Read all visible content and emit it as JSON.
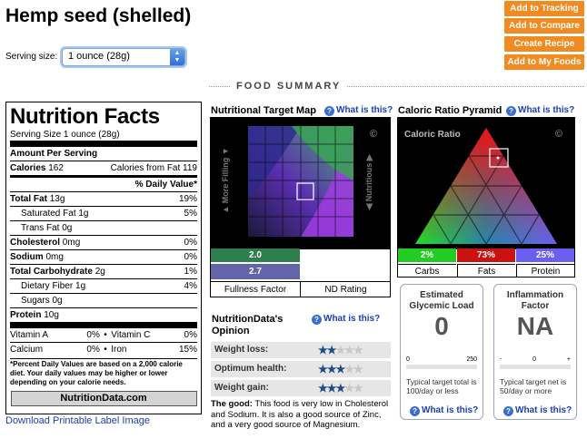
{
  "title": "Hemp seed (shelled)",
  "serving": {
    "label": "Serving size:",
    "value": "1 ounce (28g)"
  },
  "buttons": [
    "Add to Tracking",
    "Add to Compare",
    "Create Recipe",
    "Add to My Foods"
  ],
  "section_header": "FOOD SUMMARY",
  "nutrition_facts": {
    "title": "Nutrition Facts",
    "serving_size": "Serving Size  1 ounce (28g)",
    "amount_per_serving": "Amount Per Serving",
    "calories_label": "Calories",
    "calories_value": "162",
    "calories_fat_label": "Calories from Fat",
    "calories_fat_value": "119",
    "daily_value_header": "% Daily Value*",
    "total_fat_label": "Total Fat",
    "total_fat_amount": "13g",
    "total_fat_pct": "19%",
    "saturated_fat_label": "Saturated Fat",
    "saturated_fat_amount": "1g",
    "saturated_fat_pct": "5%",
    "trans_fat_label": "Trans Fat",
    "trans_fat_amount": "0g",
    "cholesterol_label": "Cholesterol",
    "cholesterol_amount": "0mg",
    "cholesterol_pct": "0%",
    "sodium_label": "Sodium",
    "sodium_amount": "0mg",
    "sodium_pct": "0%",
    "carb_label": "Total Carbohydrate",
    "carb_amount": "2g",
    "carb_pct": "1%",
    "fiber_label": "Dietary Fiber",
    "fiber_amount": "1g",
    "fiber_pct": "4%",
    "sugars_label": "Sugars",
    "sugars_amount": "0g",
    "protein_label": "Protein",
    "protein_amount": "10g",
    "vitamin_a": "Vitamin A",
    "vitamin_a_pct": "0%",
    "vitamin_c": "Vitamin C",
    "vitamin_c_pct": "0%",
    "calcium": "Calcium",
    "calcium_pct": "0%",
    "iron": "Iron",
    "iron_pct": "15%",
    "bullet": "•",
    "footnote": "*Percent Daily Values are based on a 2,000 calorie diet. Your daily values may be higher or lower depending on your calorie needs.",
    "brand": "NutritionData.com"
  },
  "download_link": "Download Printable Label Image",
  "target_map": {
    "title": "Nutritional Target Map",
    "what": "What is this?",
    "left_axis": "More Filling",
    "right_axis": "Nutritious",
    "copyright": "©",
    "score1": "2.0",
    "score2": "2.7",
    "fullness_label": "Fullness Factor",
    "nd_label": "ND Rating"
  },
  "pyramid": {
    "title": "Caloric Ratio Pyramid",
    "what": "What is this?",
    "inner_label": "Caloric Ratio",
    "copyright": "©",
    "carbs_pct": "2%",
    "fats_pct": "73%",
    "protein_pct": "25%",
    "carbs_label": "Carbs",
    "fats_label": "Fats",
    "protein_label": "Protein",
    "colors": {
      "carbs": "#22cc22",
      "fats": "#cc1111",
      "protein": "#6a5ff0"
    }
  },
  "opinion": {
    "title_line1": "NutritionData's",
    "title_line2": "Opinion",
    "what": "What is this?",
    "rows": [
      {
        "label": "Weight loss:",
        "stars": 2
      },
      {
        "label": "Optimum health:",
        "stars": 3
      },
      {
        "label": "Weight gain:",
        "stars": 3
      }
    ],
    "good_label": "The good:",
    "good_text": " This food is very low in Cholesterol and Sodium. It is also a good source of Zinc, and a very good source of Magnesium."
  },
  "glycemic": {
    "title": "Estimated Glycemic Load",
    "value": "0",
    "tick_min": "0",
    "tick_max": "250",
    "note": "Typical target total is 100/day or less",
    "what": "What is this?"
  },
  "inflammation": {
    "title": "Inflammation Factor",
    "value": "NA",
    "tick_min": "-",
    "tick_mid": "0",
    "tick_max": "+",
    "note": "Typical target net is 50/day or more",
    "what": "What is this?"
  }
}
